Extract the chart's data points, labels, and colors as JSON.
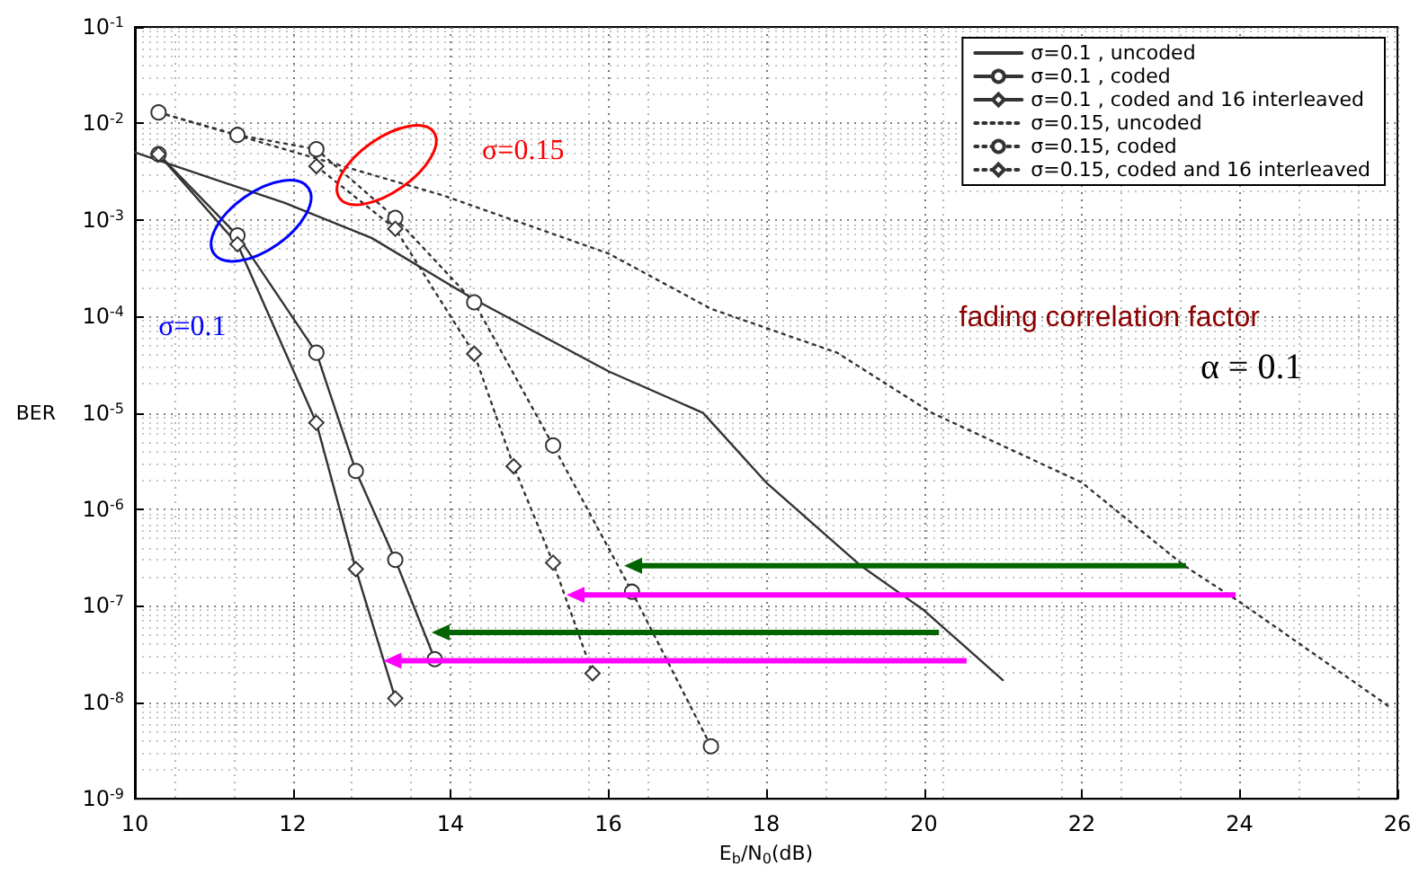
{
  "chart_data": {
    "type": "line",
    "xlabel": "E$_{b}$/N$_{0}$(dB)",
    "ylabel": "BER",
    "xlim": [
      10,
      26
    ],
    "xticks": [
      10,
      12,
      14,
      16,
      18,
      20,
      22,
      24,
      26
    ],
    "ylim": [
      1e-09,
      0.1
    ],
    "yticks": [
      {
        "value": 1e-09,
        "label": "10$^{-9}$"
      },
      {
        "value": 1e-08,
        "label": "10$^{-8}$"
      },
      {
        "value": 1e-07,
        "label": "10$^{-7}$"
      },
      {
        "value": 1e-06,
        "label": "10$^{-6}$"
      },
      {
        "value": 1e-05,
        "label": "10$^{-5}$"
      },
      {
        "value": 0.0001,
        "label": "10$^{-4}$"
      },
      {
        "value": 0.001,
        "label": "10$^{-3}$"
      },
      {
        "value": 0.01,
        "label": "10$^{-2}$"
      },
      {
        "value": 0.1,
        "label": "10$^{-1}$"
      }
    ],
    "log": "y",
    "grid": true,
    "legend": "top right",
    "series": [
      {
        "name": "σ=0.1 , uncoded",
        "color": "#333333",
        "marker": "none",
        "line_style": "solid",
        "x": [
          10,
          11.9,
          13.0,
          14.3,
          16.0,
          17.2,
          18.0,
          19.2,
          20.0,
          21.0
        ],
        "values": [
          0.005,
          0.0015,
          0.00065,
          0.00015,
          2.7e-05,
          1e-05,
          1.9e-06,
          2.6e-07,
          9e-08,
          1.7e-08
        ]
      },
      {
        "name": "σ=0.1 , coded",
        "color": "#333333",
        "marker": "circle",
        "line_style": "solid",
        "x": [
          10.3,
          11.3,
          12.3,
          12.8,
          13.3,
          13.8
        ],
        "values": [
          0.0048,
          0.00069,
          4.2e-05,
          2.5e-06,
          3e-07,
          2.8e-08
        ]
      },
      {
        "name": "σ=0.1 , coded and 16 interleaved",
        "color": "#333333",
        "marker": "diamond",
        "line_style": "solid",
        "x": [
          10.3,
          11.3,
          12.3,
          12.8,
          13.3
        ],
        "values": [
          0.0048,
          0.00056,
          7.9e-06,
          2.4e-07,
          1.1e-08
        ]
      },
      {
        "name": "σ=0.15, uncoded",
        "color": "#333333",
        "marker": "none",
        "line_style": "dotted",
        "x": [
          10.3,
          13.9,
          16.0,
          17.3,
          18.9,
          20.1,
          22.0,
          23.3,
          24.0,
          25.9
        ],
        "values": [
          0.013,
          0.0018,
          0.00045,
          0.00012,
          4.2e-05,
          1e-05,
          1.9e-06,
          2.6e-07,
          1.1e-07,
          9e-09
        ]
      },
      {
        "name": "σ=0.15, coded",
        "color": "#333333",
        "marker": "circle",
        "line_style": "dotted",
        "x": [
          10.3,
          11.3,
          12.3,
          13.3,
          14.3,
          15.3,
          16.3,
          17.3
        ],
        "values": [
          0.013,
          0.0076,
          0.0054,
          0.00105,
          0.00014,
          4.6e-06,
          1.4e-07,
          3.5e-09
        ]
      },
      {
        "name": "σ=0.15, coded and 16 interleaved",
        "color": "#333333",
        "marker": "diamond",
        "line_style": "dotted",
        "x": [
          12.3,
          13.3,
          14.3,
          14.8,
          15.3,
          15.8
        ],
        "values": [
          0.0036,
          0.00081,
          4.1e-05,
          2.8e-06,
          2.8e-07,
          2e-08
        ]
      }
    ],
    "annotations": [
      "σ=0.15",
      "σ=0.1",
      "fading correlation factor",
      "α = 0.1"
    ]
  }
}
